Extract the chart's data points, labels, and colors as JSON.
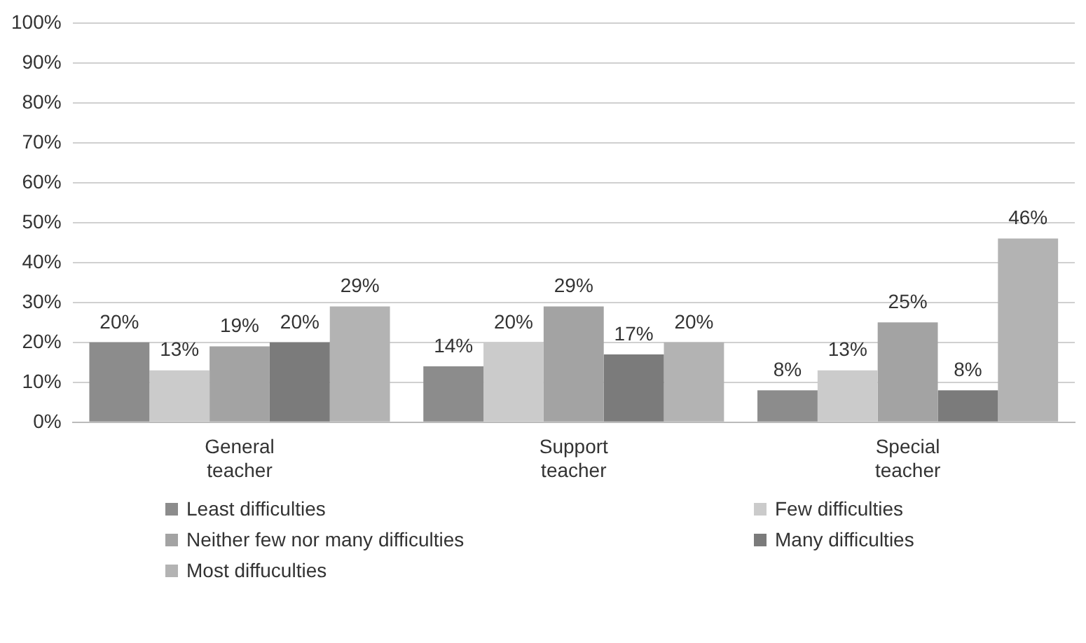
{
  "chart_data": {
    "type": "bar",
    "categories": [
      "General teacher",
      "Support teacher",
      "Special teacher"
    ],
    "series": [
      {
        "name": "Least difficulties",
        "color": "#8c8c8c",
        "values": [
          20,
          14,
          8
        ],
        "value_labels": [
          "20%",
          "14%",
          "8%"
        ]
      },
      {
        "name": "Few difficulties",
        "color": "#cbcbcb",
        "values": [
          13,
          20,
          13
        ],
        "value_labels": [
          "13%",
          "20%",
          "13%"
        ]
      },
      {
        "name": "Neither few nor many difficulties",
        "color": "#a3a3a3",
        "values": [
          19,
          29,
          25
        ],
        "value_labels": [
          "19%",
          "29%",
          "25%"
        ]
      },
      {
        "name": "Many difficulties",
        "color": "#7b7b7b",
        "values": [
          20,
          17,
          8
        ],
        "value_labels": [
          "20%",
          "17%",
          "8%"
        ]
      },
      {
        "name": "Most diffuculties",
        "color": "#b3b3b3",
        "values": [
          29,
          20,
          46
        ],
        "value_labels": [
          "29%",
          "20%",
          "46%"
        ]
      }
    ],
    "ylim": [
      0,
      100
    ],
    "yticks": [
      {
        "value": 0,
        "label": "0%"
      },
      {
        "value": 10,
        "label": "10%"
      },
      {
        "value": 20,
        "label": "20%"
      },
      {
        "value": 30,
        "label": "30%"
      },
      {
        "value": 40,
        "label": "40%"
      },
      {
        "value": 50,
        "label": "50%"
      },
      {
        "value": 60,
        "label": "60%"
      },
      {
        "value": 70,
        "label": "70%"
      },
      {
        "value": 80,
        "label": "80%"
      },
      {
        "value": 90,
        "label": "90%"
      },
      {
        "value": 100,
        "label": "100%"
      }
    ],
    "grid": "y",
    "legend": "bottom"
  }
}
